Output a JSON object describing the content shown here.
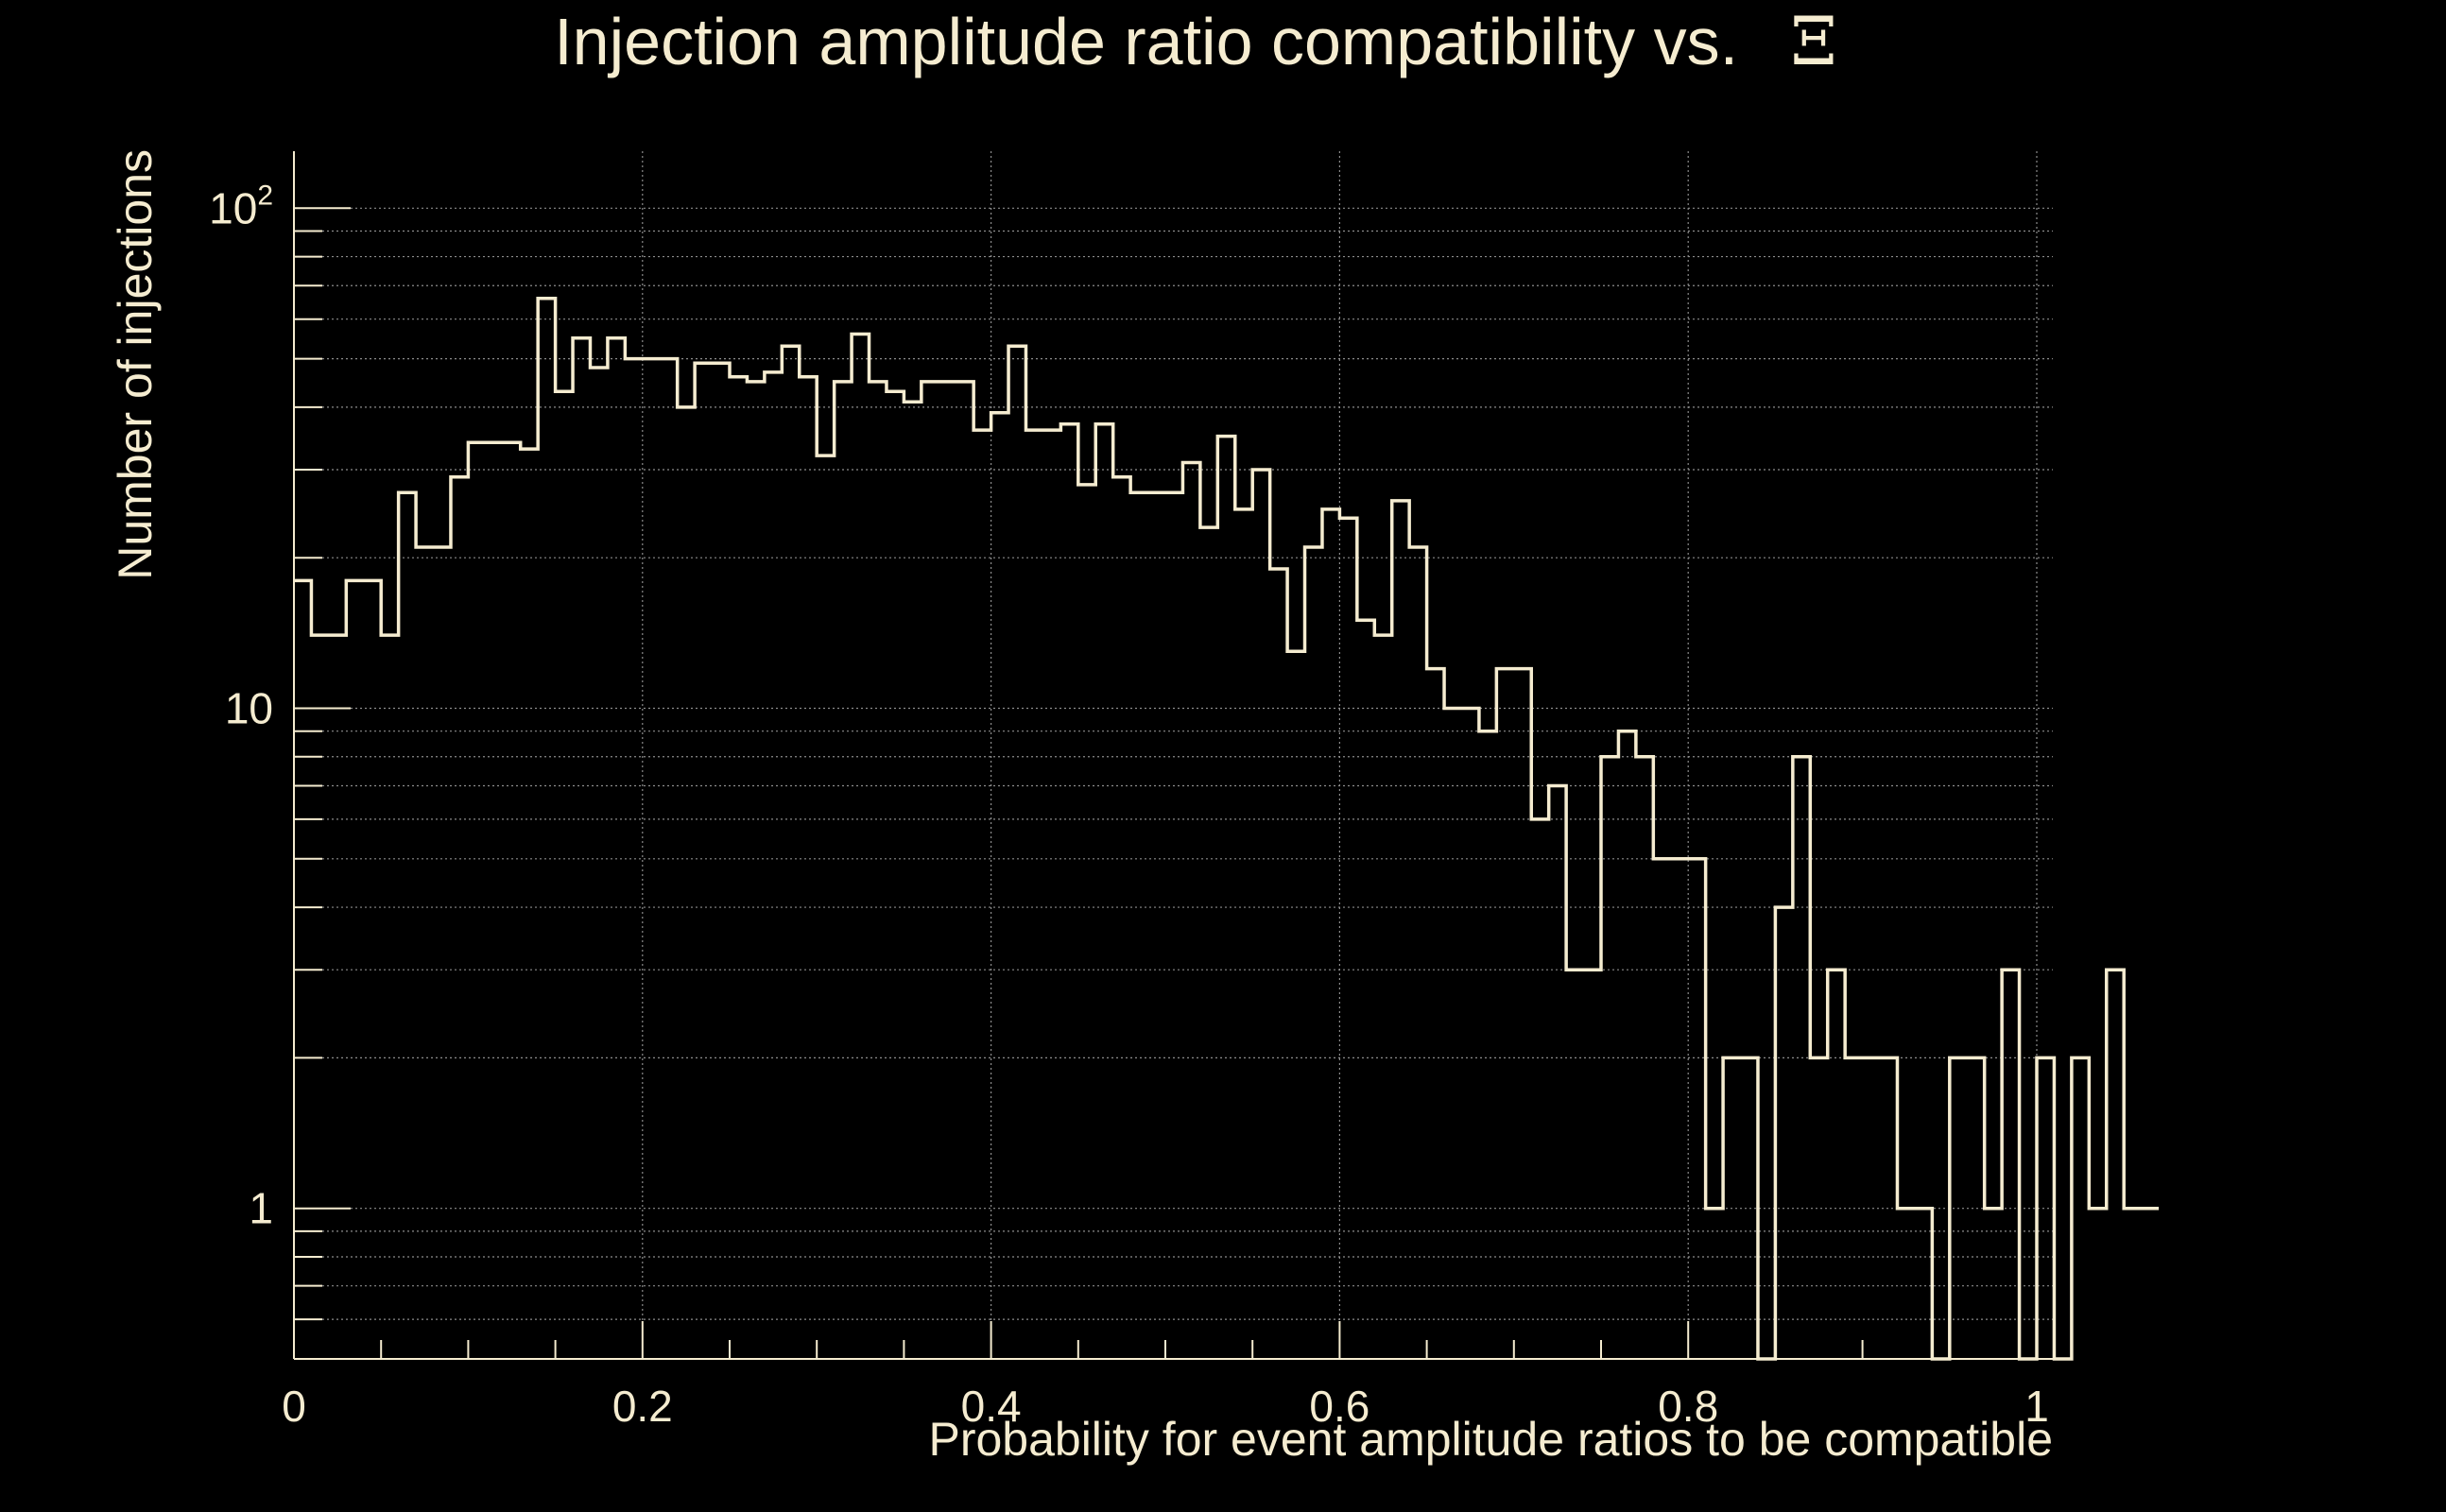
{
  "chart_data": {
    "type": "histogram",
    "title": "Injection amplitude ratio compatibility vs.",
    "title_symbol": "Ξ",
    "xlabel": "Probability for event amplitude ratios to be compatible",
    "ylabel": "Number of injections",
    "x_scale": "linear",
    "y_scale": "log",
    "xlim": [
      0,
      1
    ],
    "ylim": [
      0.5,
      130
    ],
    "grid": true,
    "x_ticks": [
      {
        "value": 0,
        "label": "0"
      },
      {
        "value": 0.2,
        "label": "0.2"
      },
      {
        "value": 0.4,
        "label": "0.4"
      },
      {
        "value": 0.6,
        "label": "0.6"
      },
      {
        "value": 0.8,
        "label": "0.8"
      },
      {
        "value": 1,
        "label": "1"
      }
    ],
    "y_ticks": [
      {
        "value": 1,
        "base": "1",
        "exp": ""
      },
      {
        "value": 10,
        "base": "10",
        "exp": ""
      },
      {
        "value": 100,
        "base": "10",
        "exp": "2"
      }
    ],
    "bin_width": 0.01,
    "bin_start": 0,
    "values": [
      18,
      14,
      14,
      18,
      18,
      14,
      27,
      21,
      21,
      29,
      34,
      34,
      34,
      33,
      66,
      43,
      55,
      48,
      55,
      50,
      50,
      50,
      40,
      49,
      49,
      46,
      45,
      47,
      53,
      46,
      32,
      45,
      56,
      45,
      43,
      41,
      45,
      45,
      45,
      36,
      39,
      53,
      36,
      36,
      37,
      28,
      37,
      29,
      27,
      27,
      27,
      31,
      23,
      35,
      25,
      30,
      19,
      13,
      21,
      25,
      24,
      15,
      14,
      26,
      21,
      12,
      10,
      10,
      9,
      12,
      12,
      6,
      7,
      3,
      3,
      8,
      9,
      8,
      5,
      5,
      5,
      1,
      2,
      2,
      0.5,
      4,
      8,
      2,
      3,
      2,
      2,
      2,
      1,
      1,
      0.5,
      2,
      2,
      1,
      3,
      0.5,
      2,
      0.5,
      2,
      1,
      3,
      1,
      1
    ],
    "colors": {
      "background": "#000000",
      "foreground": "#f5ecd0",
      "grid": "#8c8c8c",
      "line": "#f5ecd0"
    }
  }
}
